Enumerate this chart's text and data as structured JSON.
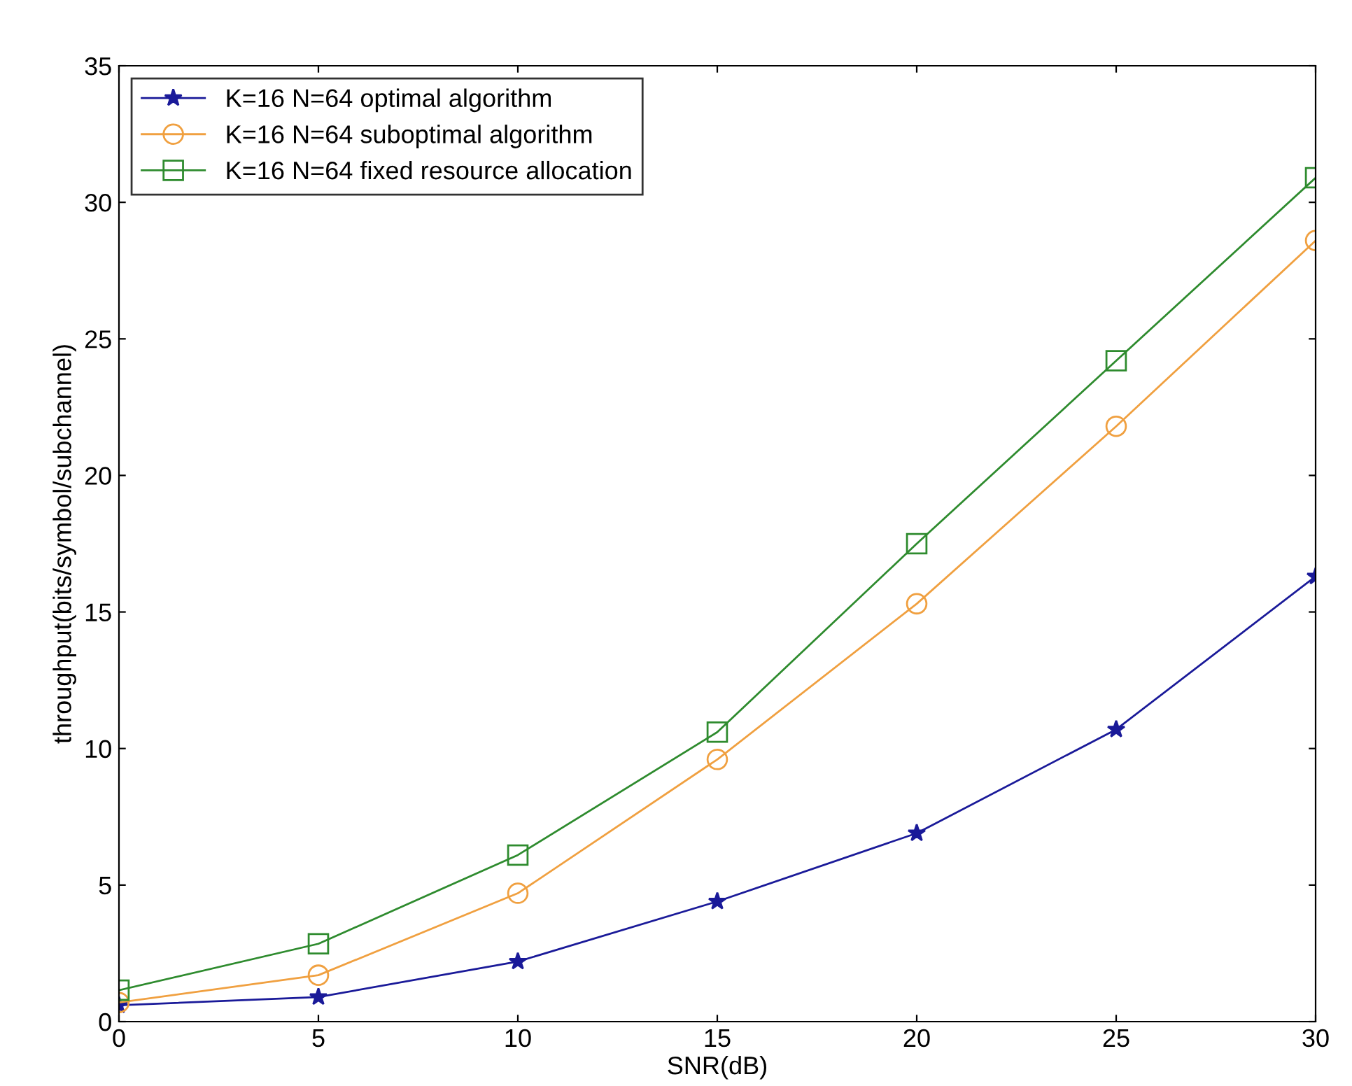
{
  "chart_data": {
    "type": "line",
    "xlabel": "SNR(dB)",
    "ylabel": "throughput(bits/symbol/subchannel)",
    "x": [
      0,
      5,
      10,
      15,
      20,
      25,
      30
    ],
    "series": [
      {
        "name": "K=16 N=64 optimal algorithm",
        "color": "#1a1a99",
        "marker": "star",
        "values": [
          0.6,
          0.9,
          2.2,
          4.4,
          6.9,
          10.7,
          16.3
        ]
      },
      {
        "name": "K=16 N=64 suboptimal algorithm",
        "color": "#f0a040",
        "marker": "circle",
        "values": [
          0.7,
          1.7,
          4.7,
          9.6,
          15.3,
          21.8,
          28.6
        ]
      },
      {
        "name": "K=16 N=64 fixed resource allocation",
        "color": "#2e8b2e",
        "marker": "square",
        "values": [
          1.15,
          2.85,
          6.1,
          10.6,
          17.5,
          24.2,
          30.9
        ]
      }
    ],
    "xlim": [
      0,
      30
    ],
    "xticks": [
      0,
      5,
      10,
      15,
      20,
      25,
      30
    ],
    "ylim": [
      0,
      35
    ],
    "yticks": [
      0,
      5,
      10,
      15,
      20,
      25,
      30,
      35
    ],
    "grid": false,
    "legend": "top left",
    "line_style": "solid"
  }
}
